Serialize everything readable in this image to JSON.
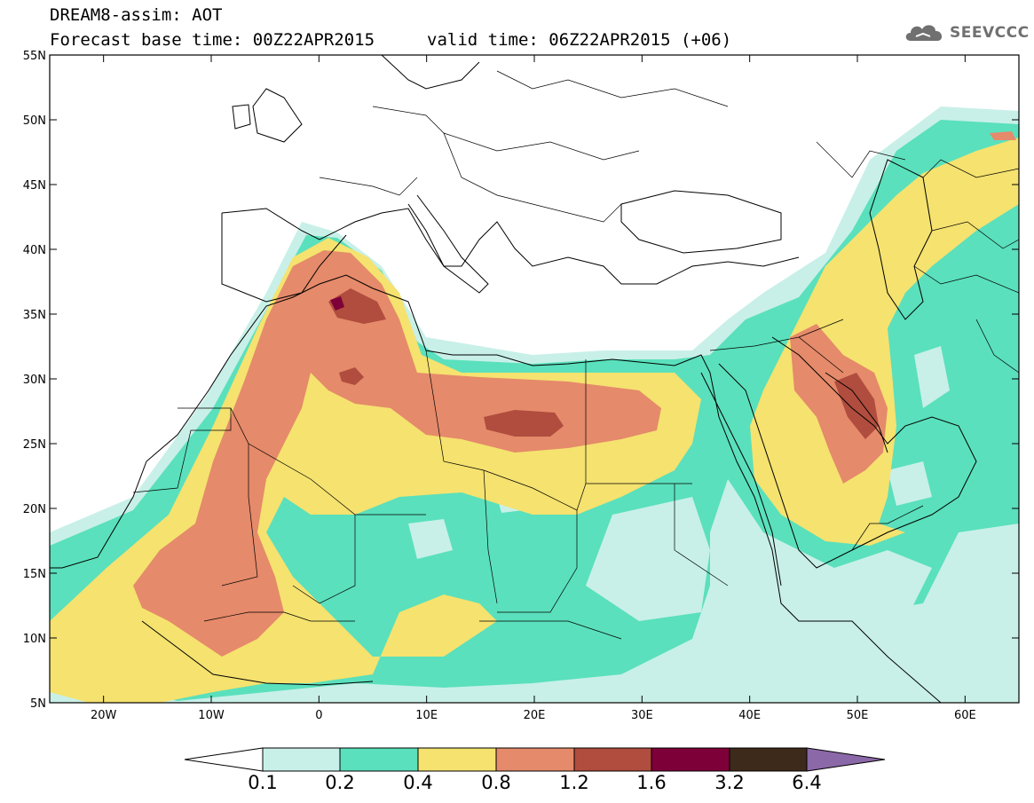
{
  "header": {
    "title": "DREAM8-assim: AOT",
    "base_time": "Forecast base time: 00Z22APR2015",
    "valid_time": "valid time: 06Z22APR2015 (+06)",
    "logo_text": "SEEVCCC",
    "logo_icon": "cloud-icon"
  },
  "map": {
    "lon_range": [
      -25,
      65
    ],
    "lat_range": [
      5,
      55
    ],
    "projection": "cylindrical",
    "lat_labels": [
      "5N",
      "10N",
      "15N",
      "20N",
      "25N",
      "30N",
      "35N",
      "40N",
      "45N",
      "50N",
      "55N"
    ],
    "lat_values": [
      5,
      10,
      15,
      20,
      25,
      30,
      35,
      40,
      45,
      50,
      55
    ],
    "lon_labels": [
      "20W",
      "10W",
      "0",
      "10E",
      "20E",
      "30E",
      "40E",
      "50E",
      "60E"
    ],
    "lon_values": [
      -20,
      -10,
      0,
      10,
      20,
      30,
      40,
      50,
      60
    ]
  },
  "colorbar": {
    "levels": [
      "0.1",
      "0.2",
      "0.4",
      "0.8",
      "1.2",
      "1.6",
      "3.2",
      "6.4"
    ],
    "colors": {
      "below": "#ffffff",
      "c1": "#c8f0e8",
      "c2": "#5ae0bc",
      "c3": "#f5e26f",
      "c4": "#e58a6a",
      "c5": "#b04d3e",
      "c6": "#7e0038",
      "c7": "#3d2a1a",
      "above": "#8b68a8"
    }
  }
}
